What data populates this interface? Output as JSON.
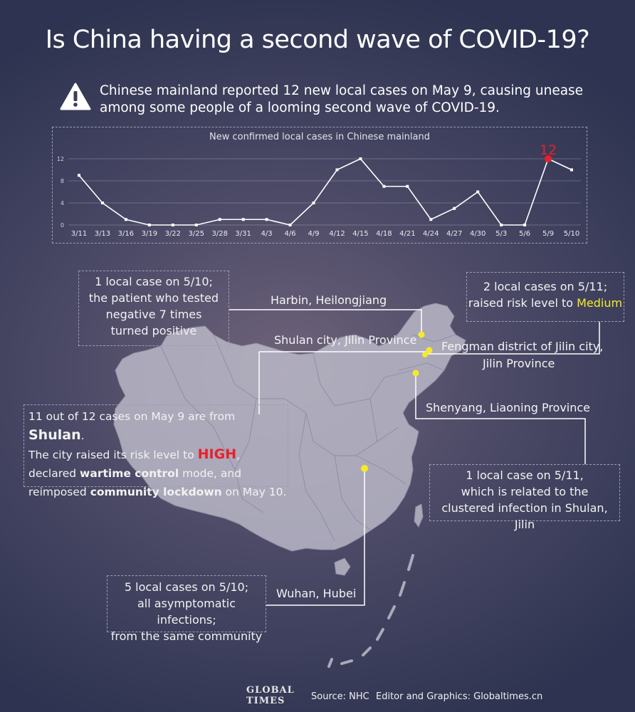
{
  "title": "Is China having a second wave of COVID-19?",
  "intro": "Chinese mainland reported 12 new local cases on May 9, causing unease among some people of a looming second wave of COVID-19.",
  "chart_data": {
    "type": "line",
    "title": "New confirmed local cases in Chinese mainland",
    "xlabel": "",
    "ylabel": "",
    "categories": [
      "3/11",
      "3/13",
      "3/16",
      "3/19",
      "3/22",
      "3/25",
      "3/28",
      "3/31",
      "4/3",
      "4/6",
      "4/9",
      "4/12",
      "4/15",
      "4/18",
      "4/21",
      "4/24",
      "4/27",
      "4/30",
      "5/3",
      "5/6",
      "5/9",
      "5/10"
    ],
    "values": [
      9,
      4,
      1,
      0,
      0,
      0,
      1,
      1,
      1,
      0,
      4,
      10,
      12,
      7,
      7,
      1,
      3,
      6,
      0,
      0,
      12,
      10
    ],
    "yticks": [
      0,
      4,
      8,
      12
    ],
    "ylim": [
      0,
      12
    ],
    "highlight": {
      "index": 20,
      "label": "12"
    },
    "colors": {
      "line": "#ffffff",
      "highlight": "#e8202a"
    }
  },
  "callouts": {
    "harbin": {
      "lines": [
        "1 local case on 5/10;",
        "the patient who tested",
        "negative 7 times",
        "turned positive"
      ]
    },
    "fengman": {
      "line1": "2 local cases on 5/11;",
      "line2_pre": "raised risk level to ",
      "line2_em": "Medium"
    },
    "shulan": {
      "l1_pre": "11 out of 12 cases on May 9 are from ",
      "l1_em": "Shulan",
      "l1_post": ".",
      "l2_pre": "The city raised its risk level to ",
      "l2_em": "HIGH",
      "l2_post": ",",
      "l3_pre": "declared ",
      "l3_em": "wartime control",
      "l3_post": " mode, and",
      "l4_pre": "reimposed ",
      "l4_em": "community lockdown",
      "l4_post": " on May 10."
    },
    "shenyang": {
      "lines": [
        "1 local case on 5/11,",
        "which is related to the",
        "clustered infection in Shulan, Jilin"
      ]
    },
    "wuhan": {
      "lines": [
        "5 local cases on 5/10;",
        "all asymptomatic infections;",
        "from the same community"
      ]
    }
  },
  "places": {
    "harbin": "Harbin, Heilongjiang",
    "shulan": "Shulan city, Jilin Province",
    "fengman_1": "Fengman district of Jilin city,",
    "fengman_2": "Jilin Province",
    "shenyang": "Shenyang, Liaoning Province",
    "wuhan": "Wuhan, Hubei"
  },
  "footer": {
    "logo_1": "GLOBAL",
    "logo_2": "TIMES",
    "source": "Source: NHC",
    "credit": "Editor and Graphics: Globaltimes.cn"
  }
}
